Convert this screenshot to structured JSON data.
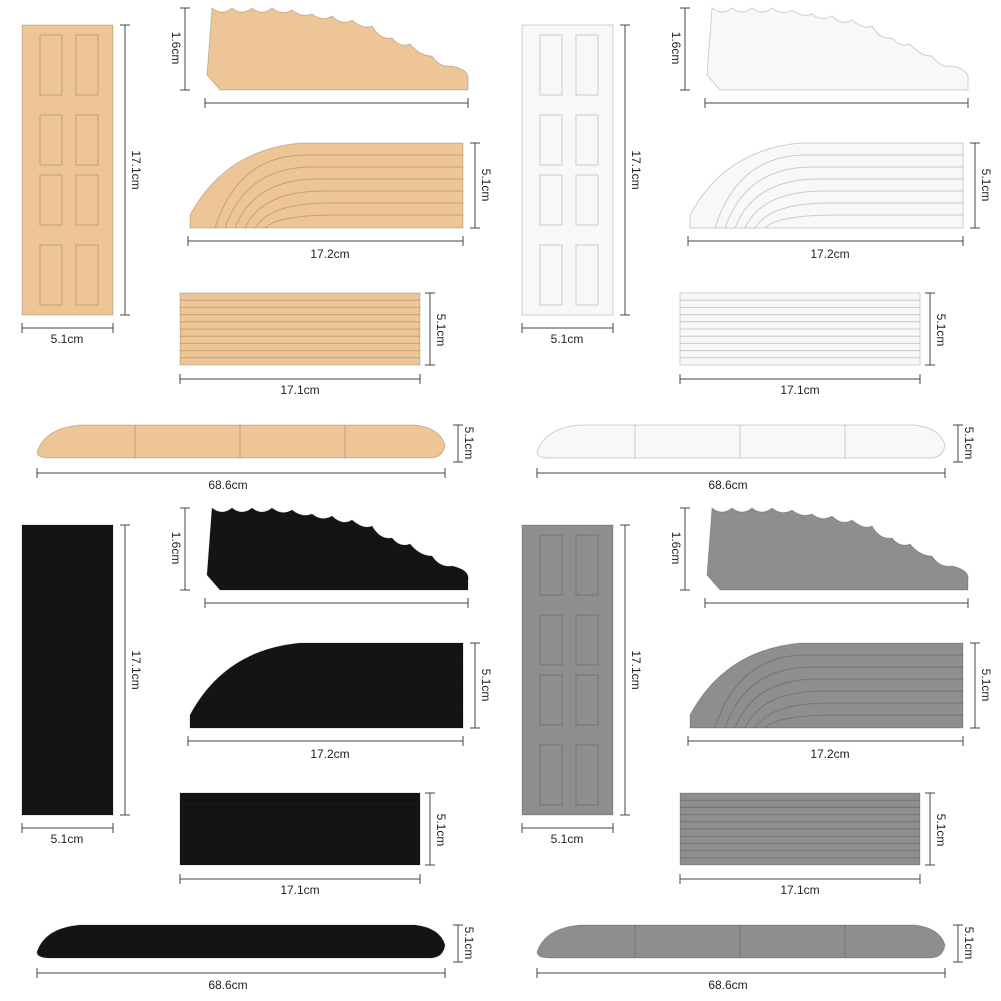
{
  "panels": [
    {
      "color": "#edc596",
      "wave_height": "1.6cm",
      "tile_length": "17.1cm",
      "tile_width": "5.1cm",
      "curve_height": "5.1cm",
      "curve_length": "17.2cm",
      "ribbed_height": "5.1cm",
      "ribbed_length": "17.1cm",
      "ramp_height": "5.1cm",
      "ramp_length": "68.6cm"
    },
    {
      "color": "#f8f8f8",
      "wave_height": "1.6cm",
      "tile_length": "17.1cm",
      "tile_width": "5.1cm",
      "curve_height": "5.1cm",
      "curve_length": "17.2cm",
      "ribbed_height": "5.1cm",
      "ribbed_length": "17.1cm",
      "ramp_height": "5.1cm",
      "ramp_length": "68.6cm"
    },
    {
      "color": "#141414",
      "wave_height": "1.6cm",
      "tile_length": "17.1cm",
      "tile_width": "5.1cm",
      "curve_height": "5.1cm",
      "curve_length": "17.2cm",
      "ribbed_height": "5.1cm",
      "ribbed_length": "17.1cm",
      "ramp_height": "5.1cm",
      "ramp_length": "68.6cm"
    },
    {
      "color": "#8e8e8e",
      "wave_height": "1.6cm",
      "tile_length": "17.1cm",
      "tile_width": "5.1cm",
      "curve_height": "5.1cm",
      "curve_length": "17.2cm",
      "ribbed_height": "5.1cm",
      "ribbed_length": "17.1cm",
      "ramp_height": "5.1cm",
      "ramp_length": "68.6cm"
    }
  ]
}
